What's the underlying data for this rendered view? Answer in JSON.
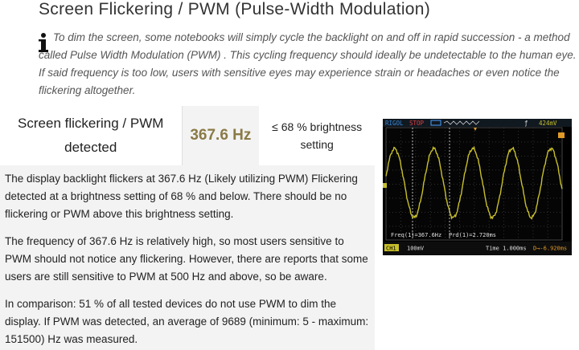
{
  "header": {
    "title": "Screen Flickering / PWM (Pulse-Width Modulation)",
    "info_icon": "info-icon",
    "info_text": "To dim the screen, some notebooks will simply cycle the backlight on and off in rapid succession - a method called Pulse Width Modulation (PWM) . This cycling frequency should ideally be undetectable to the human eye. If said frequency is too low, users with sensitive eyes may experience strain or headaches or even notice the flickering altogether."
  },
  "summary": {
    "label": "Screen flickering / PWM detected",
    "frequency": "367.6 Hz",
    "brightness": "≤ 68 % brightness setting"
  },
  "paragraphs": [
    "The display backlight flickers at 367.6 Hz (Likely utilizing PWM) Flickering detected at a brightness setting of 68 % and below. There should be no flickering or PWM above this brightness setting.",
    "The frequency of 367.6 Hz is relatively high, so most users sensitive to PWM should not notice any flickering. However, there are reports that some users are still sensitive to PWM at 500 Hz and above, so be aware.",
    "In comparison: 51 % of all tested devices do not use PWM to dim the display. If PWM was detected, an average of 9689 (minimum: 5 - maximum: 151500) Hz was measured."
  ],
  "oscilloscope": {
    "brand": "RIGOL",
    "state": "STOP",
    "trigger_level": "424mV",
    "freq_readout": "Freq(1)=367.6Hz",
    "period_readout": "Prd(1)=2.720ms",
    "channel": "CH1",
    "volts_div": "100mV",
    "time_base": "Time 1.000ms",
    "offset": "D→-6.920ms",
    "colors": {
      "trace": "#c8c02a",
      "grid": "#3a3a3a",
      "text": "#e0e0e0",
      "accent": "#e09a28"
    }
  }
}
